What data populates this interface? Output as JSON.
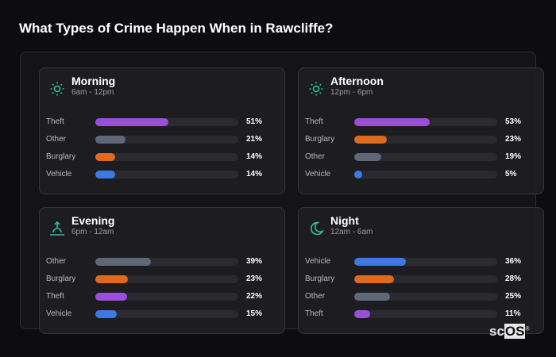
{
  "title": "What Types of Crime Happen When in Rawcliffe?",
  "colors": {
    "Theft": "#9a4fd8",
    "Other": "#5f6878",
    "Burglary": "#e06a1c",
    "Vehicle": "#3b7ae0",
    "accent": "#2bc29a"
  },
  "cards": [
    {
      "name": "Morning",
      "range": "6am - 12pm",
      "icon": "sun-icon",
      "rows": [
        {
          "label": "Theft",
          "value": 51,
          "pct": "51%"
        },
        {
          "label": "Other",
          "value": 21,
          "pct": "21%"
        },
        {
          "label": "Burglary",
          "value": 14,
          "pct": "14%"
        },
        {
          "label": "Vehicle",
          "value": 14,
          "pct": "14%"
        }
      ]
    },
    {
      "name": "Afternoon",
      "range": "12pm - 6pm",
      "icon": "sun-icon",
      "rows": [
        {
          "label": "Theft",
          "value": 53,
          "pct": "53%"
        },
        {
          "label": "Burglary",
          "value": 23,
          "pct": "23%"
        },
        {
          "label": "Other",
          "value": 19,
          "pct": "19%"
        },
        {
          "label": "Vehicle",
          "value": 5,
          "pct": "5%"
        }
      ]
    },
    {
      "name": "Evening",
      "range": "6pm - 12am",
      "icon": "sunset-icon",
      "rows": [
        {
          "label": "Other",
          "value": 39,
          "pct": "39%"
        },
        {
          "label": "Burglary",
          "value": 23,
          "pct": "23%"
        },
        {
          "label": "Theft",
          "value": 22,
          "pct": "22%"
        },
        {
          "label": "Vehicle",
          "value": 15,
          "pct": "15%"
        }
      ]
    },
    {
      "name": "Night",
      "range": "12am - 6am",
      "icon": "moon-icon",
      "rows": [
        {
          "label": "Vehicle",
          "value": 36,
          "pct": "36%"
        },
        {
          "label": "Burglary",
          "value": 28,
          "pct": "28%"
        },
        {
          "label": "Other",
          "value": 25,
          "pct": "25%"
        },
        {
          "label": "Theft",
          "value": 11,
          "pct": "11%"
        }
      ]
    }
  ],
  "logo": {
    "text_sc": "sc",
    "text_os": "OS",
    "mark": "®"
  }
}
